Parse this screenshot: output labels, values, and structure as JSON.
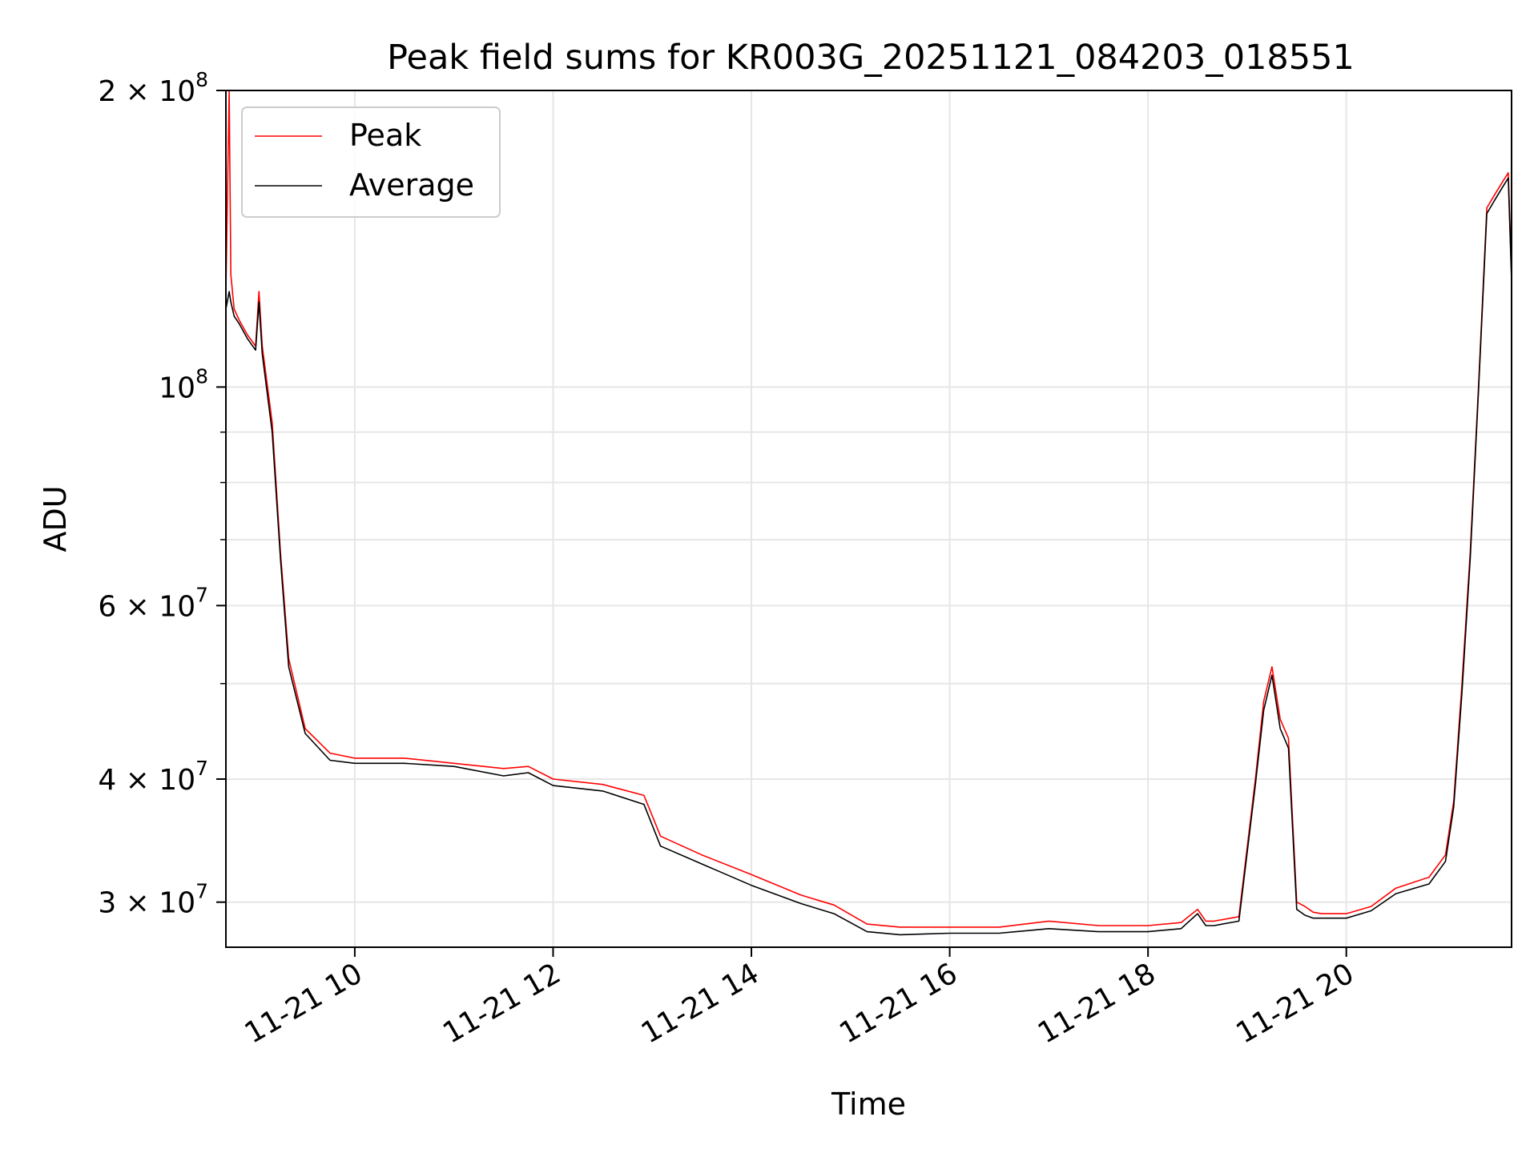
{
  "chart_data": {
    "type": "line",
    "title": "Peak field sums for KR003G_20251121_084203_018551",
    "xlabel": "Time",
    "ylabel": "ADU",
    "yscale": "log",
    "ylim": [
      27000000,
      200000000
    ],
    "xlim": [
      "2025-11-21 08:42",
      "2025-11-21 21:40"
    ],
    "grid": true,
    "legend": "top-left",
    "x_ticks": [
      {
        "value": "2025-11-21 10:00",
        "label": "11-21 10"
      },
      {
        "value": "2025-11-21 12:00",
        "label": "11-21 12"
      },
      {
        "value": "2025-11-21 14:00",
        "label": "11-21 14"
      },
      {
        "value": "2025-11-21 16:00",
        "label": "11-21 16"
      },
      {
        "value": "2025-11-21 18:00",
        "label": "11-21 18"
      },
      {
        "value": "2025-11-21 20:00",
        "label": "11-21 20"
      }
    ],
    "y_ticks": [
      {
        "value": 200000000,
        "mantissa": "2",
        "exponent": "8"
      },
      {
        "value": 100000000,
        "mantissa": "",
        "exponent": "8"
      },
      {
        "value": 60000000,
        "mantissa": "6",
        "exponent": "7"
      },
      {
        "value": 40000000,
        "mantissa": "4",
        "exponent": "7"
      },
      {
        "value": 30000000,
        "mantissa": "3",
        "exponent": "7"
      }
    ],
    "y_minor_ticks": [
      50000000,
      70000000,
      80000000,
      90000000
    ],
    "series": [
      {
        "name": "Peak",
        "color": "#ff0000",
        "x": [
          "2025-11-21 08:42",
          "2025-11-21 08:44",
          "2025-11-21 08:45",
          "2025-11-21 08:47",
          "2025-11-21 08:50",
          "2025-11-21 08:55",
          "2025-11-21 09:00",
          "2025-11-21 09:02",
          "2025-11-21 09:04",
          "2025-11-21 09:10",
          "2025-11-21 09:15",
          "2025-11-21 09:20",
          "2025-11-21 09:30",
          "2025-11-21 09:45",
          "2025-11-21 10:00",
          "2025-11-21 10:30",
          "2025-11-21 11:00",
          "2025-11-21 11:30",
          "2025-11-21 11:45",
          "2025-11-21 12:00",
          "2025-11-21 12:30",
          "2025-11-21 12:55",
          "2025-11-21 13:05",
          "2025-11-21 13:30",
          "2025-11-21 14:00",
          "2025-11-21 14:30",
          "2025-11-21 14:50",
          "2025-11-21 15:10",
          "2025-11-21 15:30",
          "2025-11-21 16:00",
          "2025-11-21 16:30",
          "2025-11-21 17:00",
          "2025-11-21 17:30",
          "2025-11-21 18:00",
          "2025-11-21 18:20",
          "2025-11-21 18:30",
          "2025-11-21 18:35",
          "2025-11-21 18:40",
          "2025-11-21 18:55",
          "2025-11-21 19:05",
          "2025-11-21 19:10",
          "2025-11-21 19:15",
          "2025-11-21 19:20",
          "2025-11-21 19:25",
          "2025-11-21 19:30",
          "2025-11-21 19:35",
          "2025-11-21 19:40",
          "2025-11-21 19:45",
          "2025-11-21 20:00",
          "2025-11-21 20:15",
          "2025-11-21 20:30",
          "2025-11-21 20:50",
          "2025-11-21 21:00",
          "2025-11-21 21:05",
          "2025-11-21 21:10",
          "2025-11-21 21:15",
          "2025-11-21 21:20",
          "2025-11-21 21:25",
          "2025-11-21 21:30",
          "2025-11-21 21:35",
          "2025-11-21 21:38",
          "2025-11-21 21:40"
        ],
        "y": [
          125000000,
          200000000,
          130000000,
          120000000,
          117000000,
          113000000,
          110000000,
          125000000,
          110000000,
          92000000,
          68000000,
          53000000,
          45000000,
          42500000,
          42000000,
          42000000,
          41500000,
          41000000,
          41200000,
          40000000,
          39500000,
          38500000,
          35000000,
          33500000,
          32000000,
          30500000,
          29800000,
          28500000,
          28300000,
          28300000,
          28300000,
          28700000,
          28400000,
          28400000,
          28600000,
          29500000,
          28700000,
          28700000,
          29000000,
          40000000,
          48000000,
          52000000,
          46000000,
          44000000,
          30000000,
          29700000,
          29300000,
          29200000,
          29200000,
          29700000,
          31000000,
          31800000,
          33500000,
          38000000,
          50000000,
          68000000,
          100000000,
          152000000,
          157000000,
          162000000,
          165000000,
          130000000
        ]
      },
      {
        "name": "Average",
        "color": "#000000",
        "x": [
          "2025-11-21 08:42",
          "2025-11-21 08:44",
          "2025-11-21 08:45",
          "2025-11-21 08:47",
          "2025-11-21 08:50",
          "2025-11-21 08:55",
          "2025-11-21 09:00",
          "2025-11-21 09:02",
          "2025-11-21 09:04",
          "2025-11-21 09:10",
          "2025-11-21 09:15",
          "2025-11-21 09:20",
          "2025-11-21 09:30",
          "2025-11-21 09:45",
          "2025-11-21 10:00",
          "2025-11-21 10:30",
          "2025-11-21 11:00",
          "2025-11-21 11:30",
          "2025-11-21 11:45",
          "2025-11-21 12:00",
          "2025-11-21 12:30",
          "2025-11-21 12:55",
          "2025-11-21 13:05",
          "2025-11-21 13:30",
          "2025-11-21 14:00",
          "2025-11-21 14:30",
          "2025-11-21 14:50",
          "2025-11-21 15:10",
          "2025-11-21 15:30",
          "2025-11-21 16:00",
          "2025-11-21 16:30",
          "2025-11-21 17:00",
          "2025-11-21 17:30",
          "2025-11-21 18:00",
          "2025-11-21 18:20",
          "2025-11-21 18:30",
          "2025-11-21 18:35",
          "2025-11-21 18:40",
          "2025-11-21 18:55",
          "2025-11-21 19:05",
          "2025-11-21 19:10",
          "2025-11-21 19:15",
          "2025-11-21 19:20",
          "2025-11-21 19:25",
          "2025-11-21 19:30",
          "2025-11-21 19:35",
          "2025-11-21 19:40",
          "2025-11-21 19:45",
          "2025-11-21 20:00",
          "2025-11-21 20:15",
          "2025-11-21 20:30",
          "2025-11-21 20:50",
          "2025-11-21 21:00",
          "2025-11-21 21:05",
          "2025-11-21 21:10",
          "2025-11-21 21:15",
          "2025-11-21 21:20",
          "2025-11-21 21:25",
          "2025-11-21 21:30",
          "2025-11-21 21:35",
          "2025-11-21 21:38",
          "2025-11-21 21:40"
        ],
        "y": [
          120000000,
          125000000,
          122000000,
          118000000,
          116000000,
          112000000,
          109000000,
          122000000,
          108000000,
          90000000,
          67000000,
          52000000,
          44500000,
          41800000,
          41500000,
          41500000,
          41200000,
          40300000,
          40600000,
          39400000,
          38900000,
          37700000,
          34200000,
          32800000,
          31200000,
          29900000,
          29200000,
          28000000,
          27800000,
          27900000,
          27900000,
          28200000,
          28000000,
          28000000,
          28200000,
          29200000,
          28400000,
          28400000,
          28700000,
          39500000,
          47000000,
          51000000,
          45000000,
          43000000,
          29500000,
          29100000,
          28900000,
          28900000,
          28900000,
          29400000,
          30600000,
          31300000,
          33000000,
          37500000,
          49000000,
          67000000,
          99000000,
          150000000,
          155000000,
          160000000,
          163000000,
          128000000
        ]
      }
    ]
  }
}
